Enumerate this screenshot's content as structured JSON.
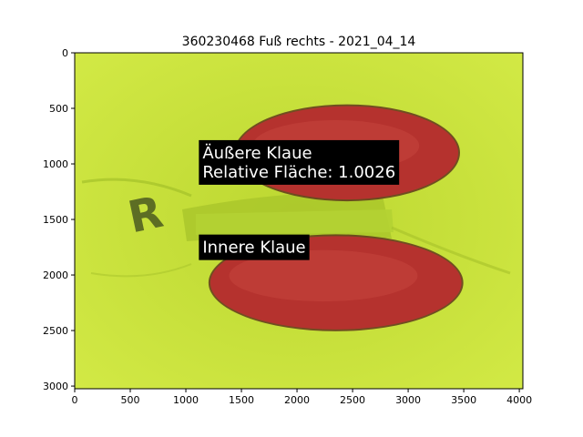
{
  "chart_data": {
    "type": "image",
    "title": "360230468 Fuß rechts - 2021_04_14",
    "xlabel": "",
    "ylabel": "",
    "xlim": [
      0,
      4032
    ],
    "ylim": [
      3024,
      0
    ],
    "x_ticks": [
      0,
      500,
      1000,
      1500,
      2000,
      2500,
      3000,
      3500,
      4000
    ],
    "y_ticks": [
      0,
      500,
      1000,
      1500,
      2000,
      2500,
      3000
    ],
    "annotations": [
      {
        "lines": [
          "Äußere Klaue",
          "Relative Fläche: 1.0026"
        ],
        "x": 1150,
        "y": 950
      },
      {
        "lines": [
          "Innere Klaue"
        ],
        "x": 1150,
        "y": 1800
      }
    ],
    "regions": [
      {
        "name": "outer-claw",
        "cx": 2450,
        "cy": 900,
        "rx": 1000,
        "ry": 420,
        "color": "#b5322e"
      },
      {
        "name": "inner-claw",
        "cx": 2350,
        "cy": 2070,
        "rx": 1130,
        "ry": 420,
        "color": "#b5322e"
      }
    ],
    "background_color": "#c8e23a",
    "letter_mark": "R"
  }
}
